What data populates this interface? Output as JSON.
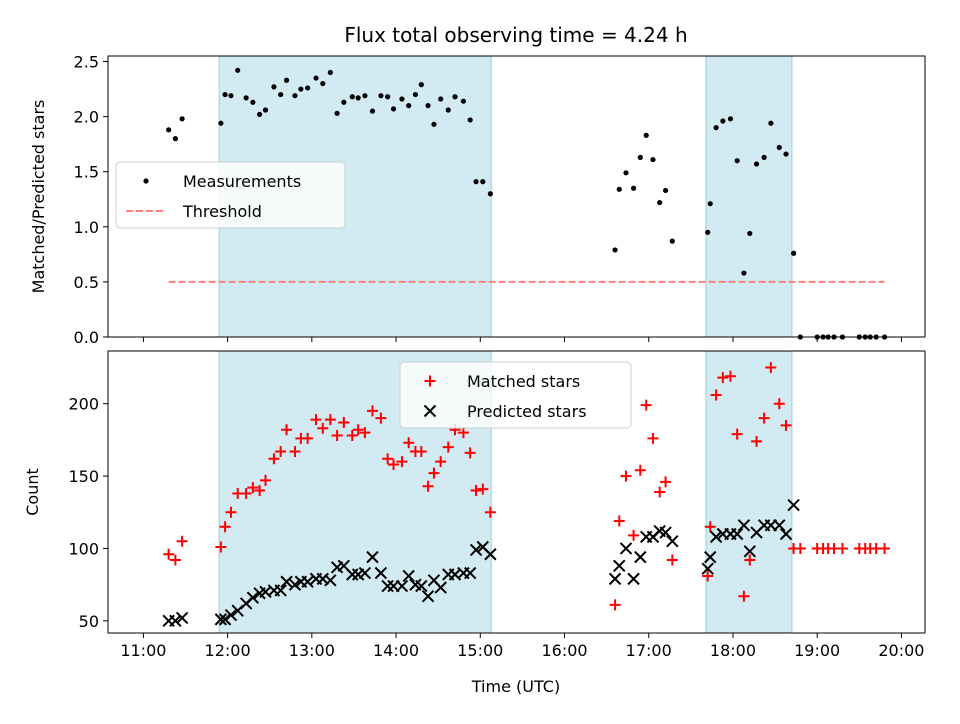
{
  "chart_data": {
    "title": "Flux total observing time = 4.24 h",
    "xlabel": "Time (UTC)",
    "x_unit": "hours UTC",
    "xlim": [
      10.58,
      20.28
    ],
    "x_ticks": [
      {
        "label": "11:00",
        "value": 11
      },
      {
        "label": "12:00",
        "value": 12
      },
      {
        "label": "13:00",
        "value": 13
      },
      {
        "label": "14:00",
        "value": 14
      },
      {
        "label": "15:00",
        "value": 15
      },
      {
        "label": "16:00",
        "value": 16
      },
      {
        "label": "17:00",
        "value": 17
      },
      {
        "label": "18:00",
        "value": 18
      },
      {
        "label": "19:00",
        "value": 19
      },
      {
        "label": "20:00",
        "value": 20
      }
    ],
    "shaded_intervals": [
      [
        11.9,
        15.13
      ],
      [
        17.68,
        18.7
      ]
    ],
    "shade_color": "#add8e6",
    "panels": [
      {
        "type": "scatter",
        "ylabel": "Matched/Predicted stars",
        "ylim": [
          0,
          2.55
        ],
        "y_ticks": [
          {
            "label": "0.0",
            "value": 0
          },
          {
            "label": "0.5",
            "value": 0.5
          },
          {
            "label": "1.0",
            "value": 1.0
          },
          {
            "label": "1.5",
            "value": 1.5
          },
          {
            "label": "2.0",
            "value": 2.0
          },
          {
            "label": "2.5",
            "value": 2.5
          }
        ],
        "legend_position": "center-left",
        "series": [
          {
            "name": "Measurements",
            "marker": "dot",
            "color": "#000000",
            "points": [
              [
                11.3,
                1.88
              ],
              [
                11.38,
                1.8
              ],
              [
                11.46,
                1.98
              ],
              [
                11.92,
                1.94
              ],
              [
                11.97,
                2.2
              ],
              [
                12.04,
                2.19
              ],
              [
                12.12,
                2.42
              ],
              [
                12.22,
                2.17
              ],
              [
                12.3,
                2.13
              ],
              [
                12.38,
                2.02
              ],
              [
                12.45,
                2.06
              ],
              [
                12.55,
                2.27
              ],
              [
                12.63,
                2.2
              ],
              [
                12.7,
                2.33
              ],
              [
                12.8,
                2.19
              ],
              [
                12.87,
                2.25
              ],
              [
                12.95,
                2.26
              ],
              [
                13.05,
                2.35
              ],
              [
                13.13,
                2.3
              ],
              [
                13.22,
                2.4
              ],
              [
                13.3,
                2.03
              ],
              [
                13.38,
                2.13
              ],
              [
                13.48,
                2.18
              ],
              [
                13.55,
                2.17
              ],
              [
                13.63,
                2.19
              ],
              [
                13.72,
                2.05
              ],
              [
                13.82,
                2.19
              ],
              [
                13.9,
                2.18
              ],
              [
                13.97,
                2.07
              ],
              [
                14.07,
                2.16
              ],
              [
                14.15,
                2.1
              ],
              [
                14.23,
                2.2
              ],
              [
                14.3,
                2.29
              ],
              [
                14.38,
                2.1
              ],
              [
                14.45,
                1.93
              ],
              [
                14.53,
                2.16
              ],
              [
                14.62,
                2.06
              ],
              [
                14.7,
                2.18
              ],
              [
                14.8,
                2.14
              ],
              [
                14.88,
                1.97
              ],
              [
                14.95,
                1.41
              ],
              [
                15.03,
                1.41
              ],
              [
                15.12,
                1.3
              ],
              [
                16.6,
                0.79
              ],
              [
                16.65,
                1.34
              ],
              [
                16.73,
                1.49
              ],
              [
                16.82,
                1.35
              ],
              [
                16.9,
                1.63
              ],
              [
                16.97,
                1.83
              ],
              [
                17.05,
                1.61
              ],
              [
                17.13,
                1.22
              ],
              [
                17.2,
                1.33
              ],
              [
                17.28,
                0.87
              ],
              [
                17.7,
                0.95
              ],
              [
                17.73,
                1.21
              ],
              [
                17.8,
                1.9
              ],
              [
                17.88,
                1.96
              ],
              [
                17.97,
                1.98
              ],
              [
                18.05,
                1.6
              ],
              [
                18.13,
                0.58
              ],
              [
                18.2,
                0.94
              ],
              [
                18.28,
                1.57
              ],
              [
                18.37,
                1.63
              ],
              [
                18.45,
                1.94
              ],
              [
                18.55,
                1.72
              ],
              [
                18.63,
                1.66
              ],
              [
                18.72,
                0.76
              ],
              [
                18.8,
                0.0
              ],
              [
                19.0,
                0.0
              ],
              [
                19.07,
                0.0
              ],
              [
                19.13,
                0.0
              ],
              [
                19.2,
                0.0
              ],
              [
                19.3,
                0.0
              ],
              [
                19.5,
                0.0
              ],
              [
                19.57,
                0.0
              ],
              [
                19.63,
                0.0
              ],
              [
                19.7,
                0.0
              ],
              [
                19.8,
                0.0
              ]
            ]
          },
          {
            "name": "Threshold",
            "marker": "dashed-line",
            "color": "#ff7f7f",
            "points": [
              [
                11.3,
                0.5
              ],
              [
                19.8,
                0.5
              ]
            ]
          }
        ]
      },
      {
        "type": "scatter",
        "ylabel": "Count",
        "ylim": [
          41.6,
          236.4
        ],
        "y_ticks": [
          {
            "label": "50",
            "value": 50
          },
          {
            "label": "100",
            "value": 100
          },
          {
            "label": "150",
            "value": 150
          },
          {
            "label": "200",
            "value": 200
          }
        ],
        "legend_position": "top-center",
        "series": [
          {
            "name": "Matched stars",
            "marker": "plus",
            "color": "#ff0000",
            "points": [
              [
                11.3,
                96
              ],
              [
                11.38,
                92
              ],
              [
                11.46,
                105
              ],
              [
                11.92,
                101
              ],
              [
                11.97,
                115
              ],
              [
                12.04,
                125
              ],
              [
                12.12,
                138
              ],
              [
                12.22,
                138
              ],
              [
                12.3,
                142
              ],
              [
                12.38,
                140
              ],
              [
                12.45,
                147
              ],
              [
                12.55,
                162
              ],
              [
                12.63,
                167
              ],
              [
                12.7,
                182
              ],
              [
                12.8,
                167
              ],
              [
                12.87,
                176
              ],
              [
                12.95,
                176
              ],
              [
                13.05,
                189
              ],
              [
                13.13,
                183
              ],
              [
                13.22,
                189
              ],
              [
                13.3,
                178
              ],
              [
                13.38,
                187
              ],
              [
                13.48,
                178
              ],
              [
                13.55,
                182
              ],
              [
                13.63,
                180
              ],
              [
                13.72,
                195
              ],
              [
                13.82,
                190
              ],
              [
                13.9,
                162
              ],
              [
                13.97,
                158
              ],
              [
                14.07,
                160
              ],
              [
                14.15,
                173
              ],
              [
                14.23,
                167
              ],
              [
                14.3,
                167
              ],
              [
                14.38,
                143
              ],
              [
                14.45,
                152
              ],
              [
                14.53,
                160
              ],
              [
                14.62,
                170
              ],
              [
                14.7,
                182
              ],
              [
                14.8,
                180
              ],
              [
                14.88,
                166
              ],
              [
                14.95,
                140
              ],
              [
                15.03,
                141
              ],
              [
                15.12,
                125
              ],
              [
                16.6,
                61
              ],
              [
                16.65,
                119
              ],
              [
                16.73,
                150
              ],
              [
                16.82,
                109
              ],
              [
                16.9,
                154
              ],
              [
                16.97,
                199
              ],
              [
                17.05,
                176
              ],
              [
                17.13,
                139
              ],
              [
                17.2,
                146
              ],
              [
                17.28,
                92
              ],
              [
                17.7,
                81
              ],
              [
                17.73,
                115
              ],
              [
                17.8,
                206
              ],
              [
                17.88,
                218
              ],
              [
                17.97,
                219
              ],
              [
                18.05,
                179
              ],
              [
                18.13,
                67
              ],
              [
                18.2,
                92
              ],
              [
                18.28,
                174
              ],
              [
                18.37,
                190
              ],
              [
                18.45,
                225
              ],
              [
                18.55,
                200
              ],
              [
                18.63,
                185
              ],
              [
                18.72,
                100
              ],
              [
                18.8,
                100
              ],
              [
                19.0,
                100
              ],
              [
                19.07,
                100
              ],
              [
                19.13,
                100
              ],
              [
                19.2,
                100
              ],
              [
                19.3,
                100
              ],
              [
                19.5,
                100
              ],
              [
                19.57,
                100
              ],
              [
                19.63,
                100
              ],
              [
                19.7,
                100
              ],
              [
                19.8,
                100
              ]
            ]
          },
          {
            "name": "Predicted stars",
            "marker": "x",
            "color": "#000000",
            "points": [
              [
                11.3,
                50
              ],
              [
                11.38,
                50
              ],
              [
                11.46,
                52
              ],
              [
                11.92,
                51
              ],
              [
                11.97,
                51
              ],
              [
                12.04,
                54
              ],
              [
                12.12,
                57
              ],
              [
                12.22,
                62
              ],
              [
                12.3,
                66
              ],
              [
                12.38,
                69
              ],
              [
                12.45,
                70
              ],
              [
                12.55,
                71
              ],
              [
                12.63,
                71
              ],
              [
                12.7,
                77
              ],
              [
                12.8,
                75
              ],
              [
                12.87,
                77
              ],
              [
                12.95,
                77
              ],
              [
                13.05,
                79
              ],
              [
                13.13,
                79
              ],
              [
                13.22,
                78
              ],
              [
                13.3,
                87
              ],
              [
                13.38,
                88
              ],
              [
                13.48,
                82
              ],
              [
                13.55,
                82
              ],
              [
                13.63,
                83
              ],
              [
                13.72,
                94
              ],
              [
                13.82,
                83
              ],
              [
                13.9,
                74
              ],
              [
                13.97,
                74
              ],
              [
                14.07,
                74
              ],
              [
                14.15,
                81
              ],
              [
                14.23,
                75
              ],
              [
                14.3,
                74
              ],
              [
                14.38,
                67
              ],
              [
                14.45,
                78
              ],
              [
                14.53,
                73
              ],
              [
                14.62,
                82
              ],
              [
                14.7,
                82
              ],
              [
                14.8,
                83
              ],
              [
                14.88,
                83
              ],
              [
                14.95,
                99
              ],
              [
                15.03,
                101
              ],
              [
                15.12,
                96
              ],
              [
                16.6,
                79
              ],
              [
                16.65,
                88
              ],
              [
                16.73,
                100
              ],
              [
                16.82,
                79
              ],
              [
                16.9,
                94
              ],
              [
                16.97,
                108
              ],
              [
                17.05,
                108
              ],
              [
                17.13,
                112
              ],
              [
                17.2,
                111
              ],
              [
                17.28,
                105
              ],
              [
                17.7,
                86
              ],
              [
                17.73,
                94
              ],
              [
                17.8,
                108
              ],
              [
                17.88,
                110
              ],
              [
                17.97,
                110
              ],
              [
                18.05,
                110
              ],
              [
                18.13,
                116
              ],
              [
                18.2,
                98
              ],
              [
                18.28,
                111
              ],
              [
                18.37,
                116
              ],
              [
                18.45,
                116
              ],
              [
                18.55,
                116
              ],
              [
                18.63,
                110
              ],
              [
                18.72,
                130
              ]
            ]
          }
        ]
      }
    ]
  }
}
